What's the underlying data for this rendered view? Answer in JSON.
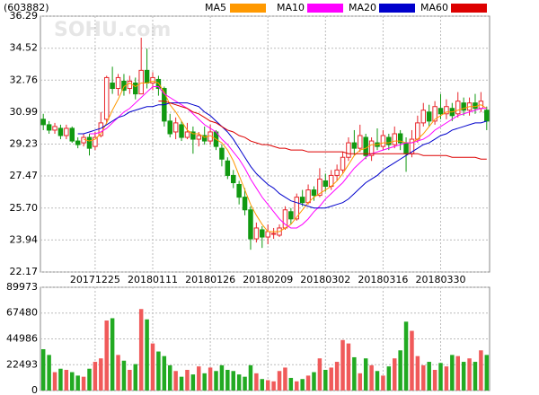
{
  "chart_data": [
    {
      "type": "candlestick",
      "title": "(603882)",
      "watermark": "SOHU.com",
      "categories": [
        null,
        null,
        null,
        null,
        null,
        null,
        null,
        null,
        null,
        "20171225",
        null,
        null,
        null,
        null,
        null,
        null,
        null,
        null,
        null,
        "20180111",
        null,
        null,
        null,
        null,
        null,
        null,
        null,
        null,
        null,
        "20180126",
        null,
        null,
        null,
        null,
        null,
        null,
        null,
        null,
        null,
        "20180209",
        null,
        null,
        null,
        null,
        null,
        null,
        null,
        null,
        null,
        "20180302",
        null,
        null,
        null,
        null,
        null,
        null,
        null,
        null,
        null,
        "20180316",
        null,
        null,
        null,
        null,
        null,
        null,
        null,
        null,
        null,
        "20180330",
        null,
        null,
        null,
        null,
        null,
        null,
        null,
        null
      ],
      "open": [
        30.6,
        30.3,
        30.0,
        30.1,
        29.7,
        30.1,
        29.4,
        29.3,
        29.6,
        29.1,
        29.7,
        30.6,
        32.6,
        32.3,
        32.7,
        32.3,
        32.6,
        32.0,
        33.3,
        32.6,
        32.8,
        32.3,
        30.5,
        29.9,
        30.3,
        29.6,
        29.9,
        29.5,
        29.7,
        29.4,
        29.9,
        29.0,
        28.3,
        27.5,
        27.0,
        26.3,
        25.6,
        24.0,
        24.5,
        24.1,
        24.3,
        24.2,
        24.6,
        25.5,
        25.1,
        26.3,
        26.0,
        26.7,
        26.4,
        27.2,
        26.9,
        27.5,
        27.8,
        28.5,
        29.3,
        29.0,
        29.6,
        28.6,
        29.3,
        29.1,
        29.6,
        29.2,
        29.8,
        29.3,
        28.7,
        29.5,
        30.4,
        31.0,
        30.5,
        31.2,
        30.9,
        31.2,
        30.9,
        31.5,
        31.1,
        31.5,
        31.2,
        31.1
      ],
      "high": [
        30.9,
        30.5,
        30.4,
        30.3,
        30.3,
        30.2,
        29.6,
        29.8,
        29.8,
        29.9,
        31.0,
        33.0,
        33.5,
        33.1,
        33.1,
        33.0,
        32.9,
        35.1,
        34.5,
        33.2,
        33.0,
        32.4,
        30.9,
        30.7,
        30.5,
        30.4,
        30.2,
        29.9,
        30.2,
        30.3,
        30.0,
        29.2,
        28.5,
        27.8,
        27.2,
        26.8,
        25.8,
        24.9,
        24.7,
        24.8,
        24.6,
        24.8,
        25.8,
        25.7,
        26.5,
        26.7,
        27.0,
        26.9,
        27.9,
        27.6,
        27.8,
        28.1,
        28.8,
        29.6,
        30.0,
        30.3,
        29.8,
        29.6,
        30.1,
        30.0,
        29.8,
        30.2,
        30.0,
        29.6,
        30.0,
        30.8,
        31.5,
        31.4,
        31.6,
        32.0,
        31.7,
        31.5,
        32.1,
        31.8,
        31.8,
        32.0,
        32.1,
        31.3
      ],
      "low": [
        30.0,
        29.8,
        29.8,
        29.5,
        29.5,
        29.3,
        29.0,
        29.1,
        28.6,
        28.9,
        29.6,
        30.4,
        32.0,
        31.9,
        31.9,
        32.0,
        31.7,
        32.0,
        32.3,
        32.2,
        31.9,
        30.2,
        29.6,
        29.5,
        29.4,
        29.5,
        28.7,
        29.1,
        29.2,
        29.2,
        28.9,
        28.0,
        27.3,
        26.8,
        25.9,
        25.3,
        23.4,
        23.8,
        23.5,
        23.7,
        24.0,
        24.1,
        24.5,
        24.8,
        25.0,
        25.8,
        25.9,
        26.1,
        26.3,
        26.6,
        26.7,
        27.2,
        27.6,
        28.3,
        28.6,
        28.8,
        28.4,
        28.3,
        28.9,
        28.9,
        28.9,
        29.0,
        28.9,
        27.7,
        28.5,
        29.3,
        30.2,
        30.2,
        30.3,
        30.6,
        30.6,
        30.5,
        30.7,
        30.8,
        30.8,
        30.9,
        31.0,
        30.0
      ],
      "close": [
        30.3,
        30.0,
        30.2,
        29.7,
        30.1,
        29.4,
        29.2,
        29.6,
        29.0,
        29.6,
        30.4,
        32.9,
        32.3,
        32.9,
        32.2,
        32.7,
        32.0,
        33.3,
        32.6,
        32.9,
        32.3,
        30.5,
        29.8,
        30.4,
        29.6,
        29.9,
        29.5,
        29.7,
        29.4,
        29.9,
        29.1,
        28.4,
        27.5,
        27.1,
        26.3,
        25.6,
        24.0,
        24.6,
        24.1,
        24.4,
        24.3,
        24.6,
        25.6,
        25.1,
        26.3,
        26.0,
        26.7,
        26.4,
        27.3,
        26.9,
        27.5,
        27.8,
        28.5,
        29.3,
        29.0,
        29.7,
        28.6,
        29.4,
        29.1,
        29.7,
        29.2,
        29.8,
        29.3,
        28.7,
        29.5,
        30.4,
        31.1,
        30.5,
        31.3,
        30.9,
        31.3,
        30.8,
        31.6,
        31.1,
        31.5,
        31.2,
        31.6,
        30.5
      ],
      "up_color": "#e8262b",
      "down_color": "#119911",
      "series": [
        {
          "name": "MA5",
          "color": "#ff9900",
          "values": [
            null,
            null,
            null,
            null,
            null,
            null,
            null,
            29.5,
            29.4,
            29.5,
            29.8,
            30.4,
            31.1,
            31.7,
            32.4,
            32.6,
            32.4,
            32.6,
            32.6,
            32.7,
            32.6,
            32.1,
            31.4,
            31.0,
            30.5,
            30.0,
            29.8,
            29.8,
            29.6,
            29.7,
            29.5,
            29.3,
            28.9,
            28.3,
            27.5,
            26.7,
            25.9,
            25.3,
            24.8,
            24.4,
            24.4,
            24.4,
            24.6,
            24.8,
            25.2,
            25.6,
            26.0,
            26.3,
            26.5,
            26.7,
            26.9,
            27.2,
            27.6,
            28.1,
            28.6,
            28.9,
            29.0,
            29.2,
            29.2,
            29.3,
            29.3,
            29.4,
            29.4,
            29.3,
            29.3,
            29.5,
            29.8,
            30.2,
            30.6,
            30.8,
            31.0,
            31.0,
            31.1,
            31.2,
            31.3,
            31.3,
            31.4,
            31.2
          ]
        },
        {
          "name": "MA10",
          "color": "#ff00ff",
          "values": [
            null,
            null,
            null,
            null,
            null,
            null,
            null,
            null,
            29.8,
            29.8,
            29.9,
            30.1,
            30.4,
            30.7,
            31.0,
            31.2,
            31.5,
            31.8,
            32.1,
            32.4,
            32.4,
            32.0,
            31.8,
            31.6,
            31.4,
            31.2,
            30.9,
            30.6,
            30.3,
            30.1,
            29.9,
            29.5,
            29.2,
            28.8,
            28.4,
            27.9,
            27.3,
            26.8,
            26.3,
            25.9,
            25.5,
            25.1,
            24.8,
            24.6,
            24.6,
            24.8,
            25.1,
            25.5,
            25.8,
            26.2,
            26.5,
            26.8,
            27.1,
            27.5,
            27.9,
            28.2,
            28.5,
            28.7,
            28.8,
            28.9,
            29.0,
            29.1,
            29.2,
            29.3,
            29.3,
            29.4,
            29.5,
            29.7,
            30.0,
            30.2,
            30.4,
            30.6,
            30.8,
            30.9,
            31.0,
            31.1,
            31.2,
            31.2
          ]
        },
        {
          "name": "MA20",
          "color": "#0000cc",
          "values": [
            null,
            null,
            null,
            null,
            null,
            null,
            29.8,
            29.8,
            29.9,
            30.0,
            30.1,
            30.3,
            30.5,
            30.7,
            30.8,
            31.0,
            31.1,
            31.2,
            31.3,
            31.3,
            31.4,
            31.4,
            31.5,
            31.5,
            31.5,
            31.5,
            31.4,
            31.3,
            31.0,
            30.8,
            30.5,
            30.2,
            29.9,
            29.5,
            29.0,
            28.5,
            28.0,
            27.6,
            27.3,
            27.0,
            26.8,
            26.5,
            26.3,
            26.1,
            26.0,
            25.9,
            25.8,
            25.7,
            25.7,
            25.7,
            25.8,
            25.9,
            26.0,
            26.2,
            26.5,
            26.8,
            27.1,
            27.3,
            27.5,
            27.8,
            28.0,
            28.2,
            28.4,
            28.6,
            28.8,
            29.0,
            29.2,
            29.3,
            29.5,
            29.7,
            29.8,
            30.0,
            30.1,
            30.2,
            30.3,
            30.4,
            30.4,
            30.5
          ]
        },
        {
          "name": "MA60",
          "color": "#dd0000",
          "values": [
            null,
            null,
            null,
            null,
            null,
            null,
            null,
            null,
            null,
            null,
            null,
            null,
            null,
            null,
            null,
            null,
            null,
            null,
            null,
            null,
            31.6,
            31.6,
            31.5,
            31.4,
            31.3,
            31.2,
            31.0,
            30.9,
            30.7,
            30.5,
            30.4,
            30.2,
            30.0,
            29.9,
            29.7,
            29.6,
            29.4,
            29.3,
            29.2,
            29.2,
            29.1,
            29.0,
            29.0,
            28.9,
            28.9,
            28.9,
            28.8,
            28.8,
            28.8,
            28.8,
            28.8,
            28.8,
            28.8,
            28.7,
            28.7,
            28.7,
            28.7,
            28.7,
            28.7,
            28.7,
            28.7,
            28.7,
            28.7,
            28.7,
            28.7,
            28.7,
            28.6,
            28.6,
            28.6,
            28.6,
            28.6,
            28.5,
            28.5,
            28.5,
            28.5,
            28.5,
            28.4,
            28.4
          ]
        }
      ],
      "ylim": [
        22.17,
        36.29
      ],
      "yticks": [
        22.17,
        23.94,
        {
          "value": 25.7,
          "label": "25.70"
        },
        27.47,
        29.23,
        30.99,
        32.76,
        34.52,
        36.29
      ],
      "grid": true
    },
    {
      "type": "bar",
      "values": [
        36000,
        31000,
        16000,
        19000,
        18000,
        16000,
        13000,
        12000,
        19000,
        25000,
        28000,
        61000,
        63000,
        31000,
        26000,
        18000,
        23000,
        71000,
        62000,
        41000,
        34000,
        30000,
        22000,
        17000,
        12000,
        18000,
        14000,
        21000,
        15000,
        20000,
        17000,
        22000,
        18000,
        17000,
        14000,
        12000,
        22000,
        15000,
        10000,
        9000,
        8000,
        17000,
        20000,
        11000,
        8000,
        10000,
        13000,
        16000,
        28000,
        18000,
        20000,
        25000,
        44000,
        41000,
        29000,
        15000,
        28000,
        22000,
        17000,
        13000,
        21000,
        28000,
        35000,
        60000,
        52000,
        30000,
        22000,
        25000,
        18000,
        24000,
        21000,
        31000,
        30000,
        25000,
        28000,
        25000,
        35000,
        31000
      ],
      "up_color": "#f05a5a",
      "down_color": "#22aa22",
      "ylim": [
        0,
        89973
      ],
      "yticks": [
        0,
        22493,
        44986,
        67480,
        89973
      ],
      "grid": true
    }
  ]
}
